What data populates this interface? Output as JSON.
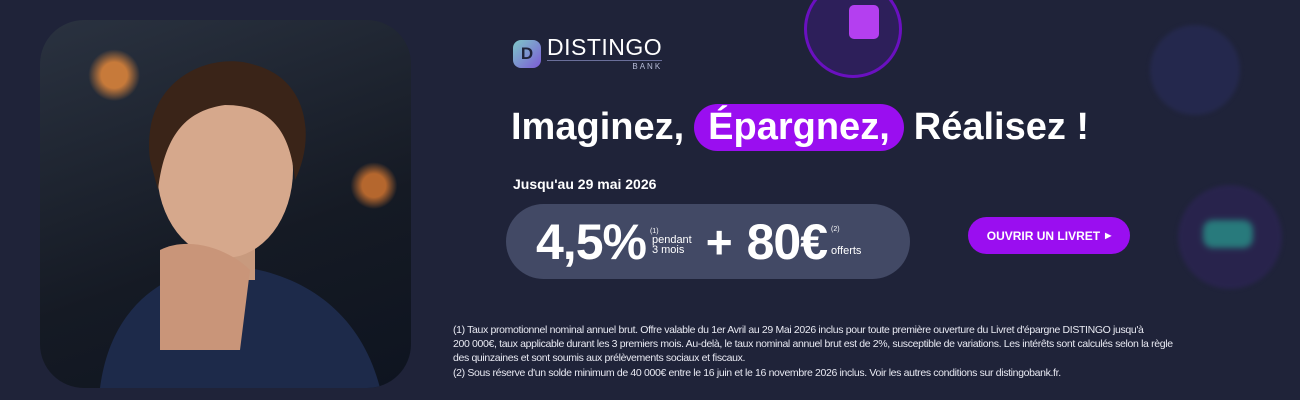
{
  "brand": {
    "name": "DISTINGO",
    "sub": "BANK",
    "mark": "D"
  },
  "headline": {
    "part1": "Imaginez,",
    "highlight": "Épargnez,",
    "part3": "Réalisez !"
  },
  "date": "Jusqu'au 29 mai 2026",
  "offer": {
    "rate": "4,5%",
    "rate_note": "(1)",
    "rate_line1": "pendant",
    "rate_line2": "3 mois",
    "plus": "+",
    "bonus": "80€",
    "bonus_note": "(2)",
    "bonus_label": "offerts"
  },
  "cta": {
    "label": "OUVRIR UN LIVRET",
    "icon": "triangle-right-icon"
  },
  "footnotes": [
    "(1) Taux promotionnel nominal annuel brut. Offre valable du 1er Avril au 29 Mai 2026 inclus pour toute première ouverture du Livret d'épargne DISTINGO jusqu'à",
    "200 000€, taux applicable durant les 3 premiers mois. Au-delà, le taux nominal annuel brut est de 2%, susceptible de variations. Les intérêts sont calculés selon la règle",
    "des quinzaines et sont soumis aux prélèvements sociaux et fiscaux.",
    "(2) Sous réserve d'un solde minimum de 40 000€ entre le 16 juin et le 16 novembre 2026 inclus. Voir les autres conditions sur distingobank.fr."
  ],
  "colors": {
    "background": "#1f2339",
    "accent": "#9a0ef0",
    "offer_bg": "#424965"
  }
}
